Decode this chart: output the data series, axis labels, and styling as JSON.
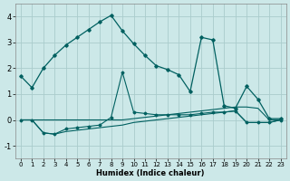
{
  "xlabel": "Humidex (Indice chaleur)",
  "background_color": "#cce8e8",
  "grid_color": "#aacccc",
  "line_color": "#006060",
  "xlim": [
    -0.5,
    23.5
  ],
  "ylim": [
    -1.5,
    4.5
  ],
  "xticks": [
    0,
    1,
    2,
    3,
    4,
    5,
    6,
    7,
    8,
    9,
    10,
    11,
    12,
    13,
    14,
    15,
    16,
    17,
    18,
    19,
    20,
    21,
    22,
    23
  ],
  "yticks": [
    -1,
    0,
    1,
    2,
    3,
    4
  ],
  "main_x": [
    0,
    1,
    2,
    3,
    4,
    5,
    6,
    7,
    8,
    9,
    10,
    11,
    12,
    13,
    14,
    15,
    16,
    17,
    18,
    19,
    20,
    21,
    22,
    23
  ],
  "main_y": [
    1.7,
    1.25,
    2.0,
    2.5,
    2.9,
    3.2,
    3.5,
    3.8,
    4.05,
    3.45,
    2.95,
    2.5,
    2.1,
    1.95,
    1.75,
    1.1,
    3.2,
    3.1,
    0.55,
    0.45,
    1.3,
    0.8,
    0.05,
    0.05
  ],
  "flat1_x": [
    0,
    1,
    2,
    3,
    4,
    5,
    6,
    7,
    8,
    9,
    10,
    11,
    12,
    13,
    14,
    15,
    16,
    17,
    18,
    19,
    20,
    21,
    22,
    23
  ],
  "flat1_y": [
    0.0,
    0.0,
    0.0,
    0.0,
    0.0,
    0.0,
    0.0,
    0.0,
    0.0,
    0.0,
    0.05,
    0.1,
    0.15,
    0.2,
    0.25,
    0.3,
    0.35,
    0.4,
    0.45,
    0.5,
    0.5,
    0.45,
    0.0,
    0.0
  ],
  "flat2_x": [
    0,
    1,
    2,
    3,
    4,
    5,
    6,
    7,
    8,
    9,
    10,
    11,
    12,
    13,
    14,
    15,
    16,
    17,
    18,
    19,
    20,
    21,
    22,
    23
  ],
  "flat2_y": [
    0.0,
    0.0,
    -0.5,
    -0.55,
    -0.45,
    -0.4,
    -0.35,
    -0.3,
    -0.25,
    -0.2,
    -0.1,
    -0.05,
    0.0,
    0.05,
    0.1,
    0.15,
    0.2,
    0.25,
    0.3,
    0.35,
    -0.1,
    -0.1,
    -0.1,
    0.0
  ],
  "flat3_x": [
    0,
    1,
    2,
    3,
    4,
    5,
    6,
    7,
    8,
    9,
    10,
    11,
    12,
    13,
    14,
    15,
    16,
    17,
    18,
    19,
    20,
    21,
    22,
    23
  ],
  "flat3_y": [
    0.0,
    0.0,
    -0.5,
    -0.55,
    -0.35,
    -0.3,
    -0.25,
    -0.2,
    0.1,
    1.85,
    0.3,
    0.25,
    0.2,
    0.2,
    0.2,
    0.2,
    0.25,
    0.3,
    0.3,
    0.35,
    -0.1,
    -0.1,
    -0.1,
    0.0
  ]
}
